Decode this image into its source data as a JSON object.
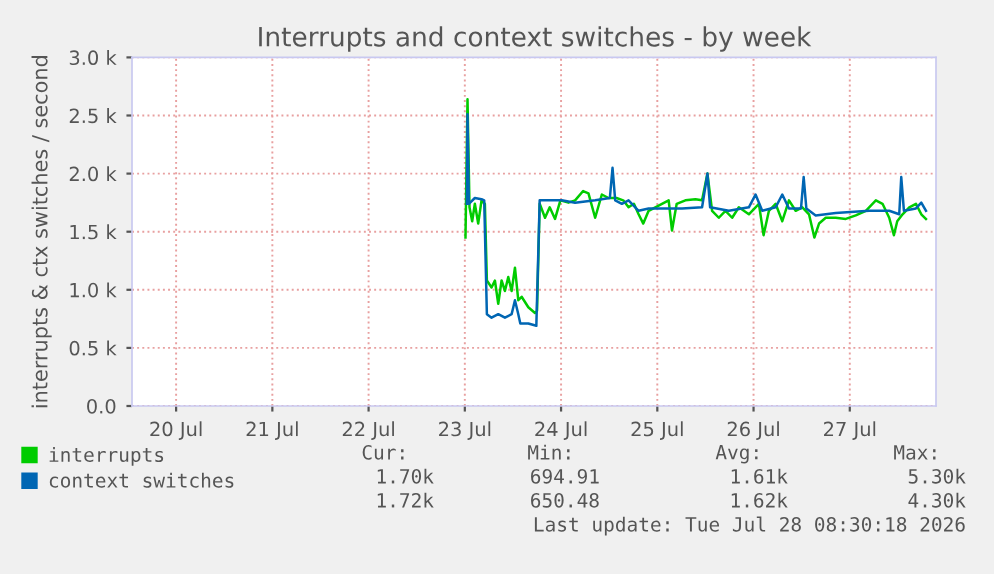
{
  "chart_data": {
    "type": "line",
    "title": "Interrupts and context switches - by week",
    "ylabel": "interrupts & ctx switches / second",
    "xlim": [
      "2026-07-20T01:00",
      "2026-07-28T09:30"
    ],
    "xticks": [
      {
        "value": "2026-07-20T12:00",
        "label": "20 Jul"
      },
      {
        "value": "2026-07-21T12:00",
        "label": "21 Jul"
      },
      {
        "value": "2026-07-22T12:00",
        "label": "22 Jul"
      },
      {
        "value": "2026-07-23T12:00",
        "label": "23 Jul"
      },
      {
        "value": "2026-07-24T12:00",
        "label": "24 Jul"
      },
      {
        "value": "2026-07-25T12:00",
        "label": "25 Jul"
      },
      {
        "value": "2026-07-26T12:00",
        "label": "26 Jul"
      },
      {
        "value": "2026-07-27T12:00",
        "label": "27 Jul"
      }
    ],
    "ylim": [
      0,
      3000
    ],
    "yticks": [
      {
        "value": 0,
        "label": "0.0"
      },
      {
        "value": 500,
        "label": "0.5 k"
      },
      {
        "value": 1000,
        "label": "1.0 k"
      },
      {
        "value": 1500,
        "label": "1.5 k"
      },
      {
        "value": 2000,
        "label": "2.0 k"
      },
      {
        "value": 2500,
        "label": "2.5 k"
      },
      {
        "value": 3000,
        "label": "3.0 k"
      }
    ],
    "grid": true,
    "legend": "bottom",
    "series": [
      {
        "name": "interrupts",
        "color": "#00cc00",
        "x": [
          "2026-07-23T12:10",
          "2026-07-23T12:40",
          "2026-07-23T13:10",
          "2026-07-23T13:50",
          "2026-07-23T14:30",
          "2026-07-23T15:20",
          "2026-07-23T16:10",
          "2026-07-23T17:00",
          "2026-07-23T17:30",
          "2026-07-23T18:40",
          "2026-07-23T19:30",
          "2026-07-23T20:20",
          "2026-07-23T21:10",
          "2026-07-23T22:00",
          "2026-07-23T22:50",
          "2026-07-23T23:40",
          "2026-07-24T00:30",
          "2026-07-24T01:20",
          "2026-07-24T02:10",
          "2026-07-24T03:50",
          "2026-07-24T05:30",
          "2026-07-24T06:00",
          "2026-07-24T06:40",
          "2026-07-24T08:00",
          "2026-07-24T09:10",
          "2026-07-24T10:30",
          "2026-07-24T11:50",
          "2026-07-24T13:50",
          "2026-07-24T15:30",
          "2026-07-24T17:30",
          "2026-07-24T18:50",
          "2026-07-24T20:30",
          "2026-07-24T22:10",
          "2026-07-24T23:50",
          "2026-07-25T01:50",
          "2026-07-25T03:30",
          "2026-07-25T04:50",
          "2026-07-25T06:10",
          "2026-07-25T07:20",
          "2026-07-25T08:30",
          "2026-07-25T09:50",
          "2026-07-25T11:30",
          "2026-07-25T13:10",
          "2026-07-25T14:50",
          "2026-07-25T15:40",
          "2026-07-25T16:50",
          "2026-07-25T19:00",
          "2026-07-25T21:30",
          "2026-07-25T23:10",
          "2026-07-26T00:30",
          "2026-07-26T01:40",
          "2026-07-26T03:20",
          "2026-07-26T05:00",
          "2026-07-26T06:40",
          "2026-07-26T08:20",
          "2026-07-26T10:50",
          "2026-07-26T13:20",
          "2026-07-26T14:30",
          "2026-07-26T15:50",
          "2026-07-26T17:30",
          "2026-07-26T19:10",
          "2026-07-26T20:50",
          "2026-07-26T22:30",
          "2026-07-27T00:10",
          "2026-07-27T01:50",
          "2026-07-27T03:10",
          "2026-07-27T04:20",
          "2026-07-27T06:00",
          "2026-07-27T08:30",
          "2026-07-27T11:00",
          "2026-07-27T13:30",
          "2026-07-27T16:00",
          "2026-07-27T18:30",
          "2026-07-27T20:10",
          "2026-07-27T21:50",
          "2026-07-27T23:00",
          "2026-07-27T23:50",
          "2026-07-28T01:10",
          "2026-07-28T02:50",
          "2026-07-28T04:30",
          "2026-07-28T05:50",
          "2026-07-28T07:00"
        ],
        "values": [
          1450,
          2640,
          1710,
          1590,
          1740,
          1570,
          1770,
          1740,
          1080,
          1020,
          1080,
          880,
          1080,
          990,
          1110,
          990,
          1190,
          910,
          940,
          850,
          800,
          820,
          1740,
          1620,
          1710,
          1610,
          1770,
          1750,
          1770,
          1850,
          1830,
          1620,
          1820,
          1790,
          1790,
          1770,
          1710,
          1740,
          1650,
          1570,
          1680,
          1710,
          1740,
          1770,
          1510,
          1740,
          1770,
          1780,
          1770,
          2000,
          1680,
          1620,
          1680,
          1620,
          1710,
          1650,
          1740,
          1470,
          1680,
          1740,
          1590,
          1770,
          1680,
          1710,
          1650,
          1450,
          1570,
          1620,
          1620,
          1610,
          1640,
          1680,
          1770,
          1740,
          1620,
          1470,
          1590,
          1650,
          1710,
          1740,
          1650,
          1610
        ]
      },
      {
        "name": "context switches",
        "color": "#0066b3",
        "x": [
          "2026-07-23T12:30",
          "2026-07-23T12:40",
          "2026-07-23T13:00",
          "2026-07-23T14:30",
          "2026-07-23T16:10",
          "2026-07-23T16:50",
          "2026-07-23T17:30",
          "2026-07-23T18:40",
          "2026-07-23T20:20",
          "2026-07-23T22:00",
          "2026-07-23T23:40",
          "2026-07-24T00:30",
          "2026-07-24T01:20",
          "2026-07-24T01:50",
          "2026-07-24T03:50",
          "2026-07-24T05:50",
          "2026-07-24T06:40",
          "2026-07-24T08:50",
          "2026-07-24T12:10",
          "2026-07-24T15:30",
          "2026-07-24T20:30",
          "2026-07-25T00:10",
          "2026-07-25T00:50",
          "2026-07-25T01:30",
          "2026-07-25T03:10",
          "2026-07-25T04:50",
          "2026-07-25T07:20",
          "2026-07-25T09:50",
          "2026-07-25T13:10",
          "2026-07-25T18:10",
          "2026-07-25T23:10",
          "2026-07-26T00:30",
          "2026-07-26T01:10",
          "2026-07-26T05:50",
          "2026-07-26T10:50",
          "2026-07-26T12:30",
          "2026-07-26T14:10",
          "2026-07-26T17:30",
          "2026-07-26T19:10",
          "2026-07-26T20:50",
          "2026-07-26T23:50",
          "2026-07-27T00:30",
          "2026-07-27T01:10",
          "2026-07-27T03:30",
          "2026-07-27T08:30",
          "2026-07-27T16:50",
          "2026-07-27T21:50",
          "2026-07-28T00:20",
          "2026-07-28T00:50",
          "2026-07-28T01:30",
          "2026-07-28T04:30",
          "2026-07-28T05:50",
          "2026-07-28T07:00"
        ],
        "values": [
          1740,
          2510,
          1740,
          1790,
          1780,
          1770,
          790,
          760,
          790,
          760,
          790,
          910,
          790,
          710,
          710,
          690,
          1770,
          1770,
          1770,
          1750,
          1770,
          1790,
          2050,
          1770,
          1740,
          1770,
          1680,
          1700,
          1700,
          1700,
          1710,
          2000,
          1710,
          1680,
          1710,
          1820,
          1680,
          1710,
          1820,
          1700,
          1700,
          1970,
          1700,
          1640,
          1660,
          1680,
          1680,
          1650,
          1970,
          1680,
          1700,
          1750,
          1680
        ]
      }
    ],
    "annotations": [
      "Cur:",
      "Min:",
      "Avg:",
      "Max:",
      "1.70k",
      "694.91",
      "1.61k",
      "5.30k",
      "1.72k",
      "650.48",
      "1.62k",
      "4.30k",
      "Last update: Tue Jul 28 08:30:18 2026"
    ]
  }
}
